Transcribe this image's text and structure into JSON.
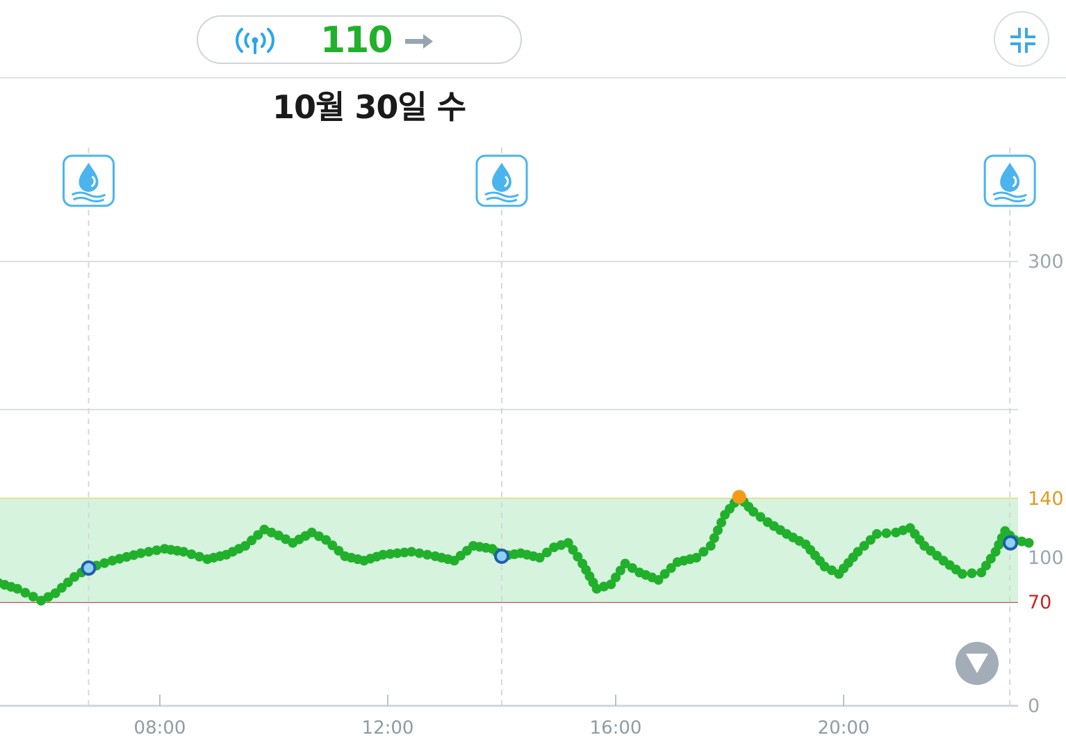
{
  "header": {
    "glucose_value": "110",
    "trend": "steady",
    "signal_icon": "signal-antenna-icon",
    "trend_icon": "arrow-right-icon",
    "collapse_icon": "collapse-icon"
  },
  "date_label": "10월 30일 수",
  "event_markers": {
    "icon": "water-drop-icon",
    "times": [
      "06:45",
      "14:00",
      "22:55"
    ]
  },
  "scroll_button_icon": "chevron-down-icon",
  "colors": {
    "glucose_line": "#21b02b",
    "high_point": "#f39a1a",
    "target_band": "#d6f3de",
    "high_line": "#e7cf4b",
    "low_line": "#c92424",
    "event_icon": "#4bb4ee",
    "calibration_point": "#1d5fa6"
  },
  "chart_data": {
    "type": "line",
    "xlabel": "",
    "ylabel": "",
    "x_ticks": [
      "08:00",
      "12:00",
      "16:00",
      "20:00"
    ],
    "y_ticks": [
      0,
      70,
      100,
      140,
      300
    ],
    "ylim": [
      0,
      300
    ],
    "xlim": [
      "05:10",
      "23:20"
    ],
    "target_range": [
      70,
      140
    ],
    "grid": "horizontal",
    "series": [
      {
        "x": [
          "05:10",
          "05:30",
          "05:55",
          "06:10",
          "06:30",
          "06:45",
          "07:10",
          "07:40",
          "08:05",
          "08:25",
          "08:50",
          "09:10",
          "09:30",
          "09:50",
          "10:05",
          "10:20",
          "10:40",
          "10:55",
          "11:15",
          "11:35",
          "11:55",
          "12:25",
          "12:50",
          "13:10",
          "13:30",
          "13:50",
          "14:00",
          "14:20",
          "14:40",
          "14:55",
          "15:10",
          "15:25",
          "15:40",
          "15:55",
          "16:10",
          "16:25",
          "16:45",
          "17:05",
          "17:25",
          "17:40",
          "17:55",
          "18:10",
          "18:25",
          "18:40",
          "19:00",
          "19:20",
          "19:40",
          "19:55",
          "20:15",
          "20:35",
          "20:55",
          "21:10",
          "21:25",
          "21:45",
          "22:05",
          "22:25",
          "22:40",
          "22:50",
          "23:00",
          "23:15"
        ],
        "y": [
          83,
          79,
          71,
          76,
          87,
          93,
          98,
          103,
          106,
          104,
          99,
          102,
          108,
          119,
          115,
          110,
          117,
          112,
          101,
          98,
          102,
          104,
          101,
          98,
          108,
          106,
          101,
          103,
          100,
          107,
          110,
          96,
          79,
          82,
          96,
          90,
          85,
          97,
          100,
          108,
          129,
          141,
          131,
          124,
          116,
          109,
          94,
          89,
          104,
          116,
          117,
          120,
          108,
          98,
          89,
          90,
          104,
          118,
          112,
          110
        ]
      }
    ],
    "high_point": {
      "x": "18:10",
      "y": 141
    },
    "calibration_points": [
      {
        "x": "06:45",
        "y": 93
      },
      {
        "x": "14:00",
        "y": 101
      },
      {
        "x": "23:15",
        "y": 110
      }
    ]
  }
}
